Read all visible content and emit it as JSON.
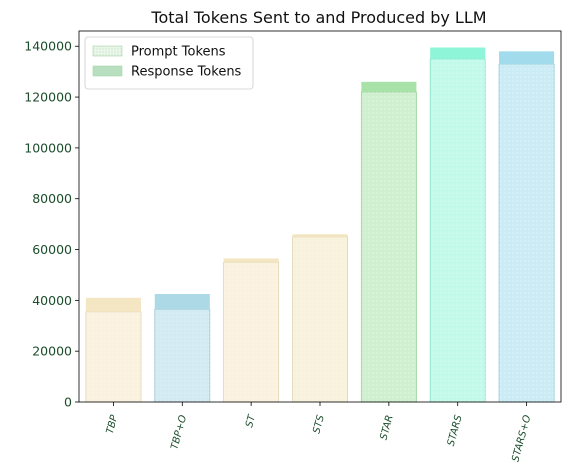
{
  "chart_data": {
    "type": "bar",
    "title": "Total Tokens Sent to and Produced by LLM",
    "xlabel": "",
    "ylabel": "",
    "categories": [
      "TBP",
      "TBP+O",
      "ST",
      "STS",
      "STAR",
      "STARS",
      "STARS+O"
    ],
    "stacked": true,
    "series": [
      {
        "name": "Prompt Tokens",
        "values": [
          35500,
          36500,
          55000,
          65000,
          122000,
          135000,
          133000
        ]
      },
      {
        "name": "Response Tokens",
        "values": [
          5500,
          6000,
          1500,
          1000,
          4000,
          4500,
          5000
        ]
      }
    ],
    "bar_colors": [
      "#f5e6c3",
      "#add8e6",
      "#f5e6c3",
      "#f3e6c0",
      "#a8e2a8",
      "#8ff5d8",
      "#a2dcec"
    ],
    "legend": {
      "placement": "top-left"
    },
    "ylim": [
      0,
      146000
    ],
    "yticks": [
      "0",
      "20000",
      "40000",
      "60000",
      "80000",
      "100000",
      "120000",
      "140000"
    ],
    "grid": false
  }
}
